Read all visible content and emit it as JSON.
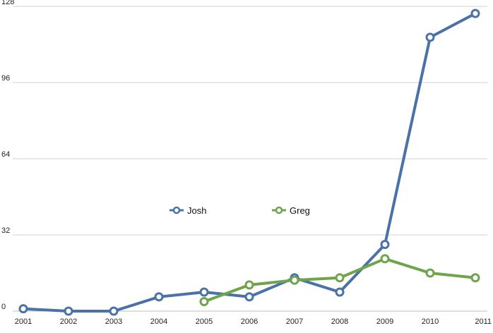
{
  "chart_data": {
    "type": "line",
    "title": "",
    "xlabel": "",
    "ylabel": "",
    "categories": [
      "2001",
      "2002",
      "2003",
      "2004",
      "2005",
      "2006",
      "2007",
      "2008",
      "2009",
      "2010",
      "2011"
    ],
    "yticks": [
      "0",
      "32",
      "64",
      "96",
      "128"
    ],
    "ylim": [
      0,
      128
    ],
    "grid": true,
    "legend_placement": "center",
    "series": [
      {
        "name": "Josh",
        "color": "#4a72a8",
        "values": [
          1,
          0,
          0,
          6,
          8,
          6,
          14,
          8,
          28,
          115,
          125
        ]
      },
      {
        "name": "Greg",
        "color": "#6ea54c",
        "values": [
          null,
          null,
          null,
          null,
          4,
          11,
          13,
          14,
          22,
          16,
          14
        ]
      }
    ]
  }
}
